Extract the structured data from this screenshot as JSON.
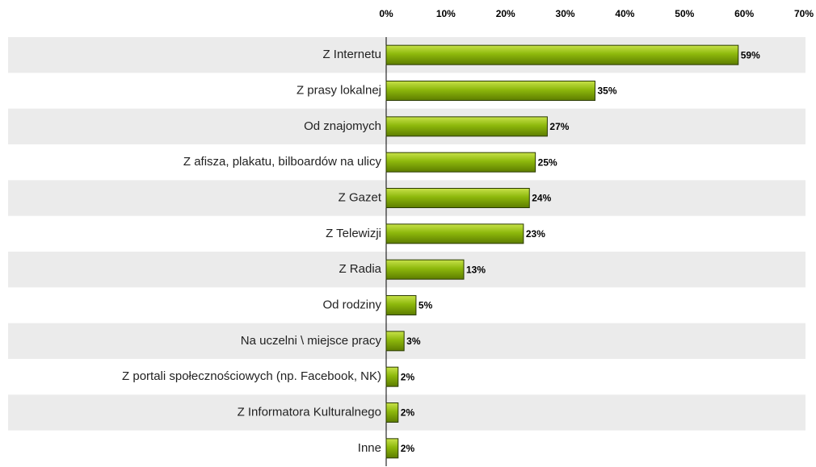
{
  "chart_data": {
    "type": "barh",
    "categories": [
      "Z Internetu",
      "Z prasy lokalnej",
      "Od znajomych",
      "Z afisza, plakatu, bilboardów na ulicy",
      "Z Gazet",
      "Z Telewizji",
      "Z Radia",
      "Od rodziny",
      "Na uczelni \\ miejsce pracy",
      "Z portali społecznościowych (np. Facebook, NK)",
      "Z Informatora Kulturalnego",
      "Inne"
    ],
    "values": [
      59,
      35,
      27,
      25,
      24,
      23,
      13,
      5,
      3,
      2,
      2,
      2
    ],
    "value_labels": [
      "59%",
      "35%",
      "27%",
      "25%",
      "24%",
      "23%",
      "13%",
      "5%",
      "3%",
      "2%",
      "2%",
      "2%"
    ],
    "color": "#7fa800",
    "xlim": [
      0,
      70
    ],
    "xticks": [
      {
        "value": 0,
        "label": "0%"
      },
      {
        "value": 10,
        "label": "10%"
      },
      {
        "value": 20,
        "label": "20%"
      },
      {
        "value": 30,
        "label": "30%"
      },
      {
        "value": 40,
        "label": "40%"
      },
      {
        "value": 50,
        "label": "50%"
      },
      {
        "value": 60,
        "label": "60%"
      },
      {
        "value": 70,
        "label": "70%"
      }
    ],
    "grid": false
  }
}
